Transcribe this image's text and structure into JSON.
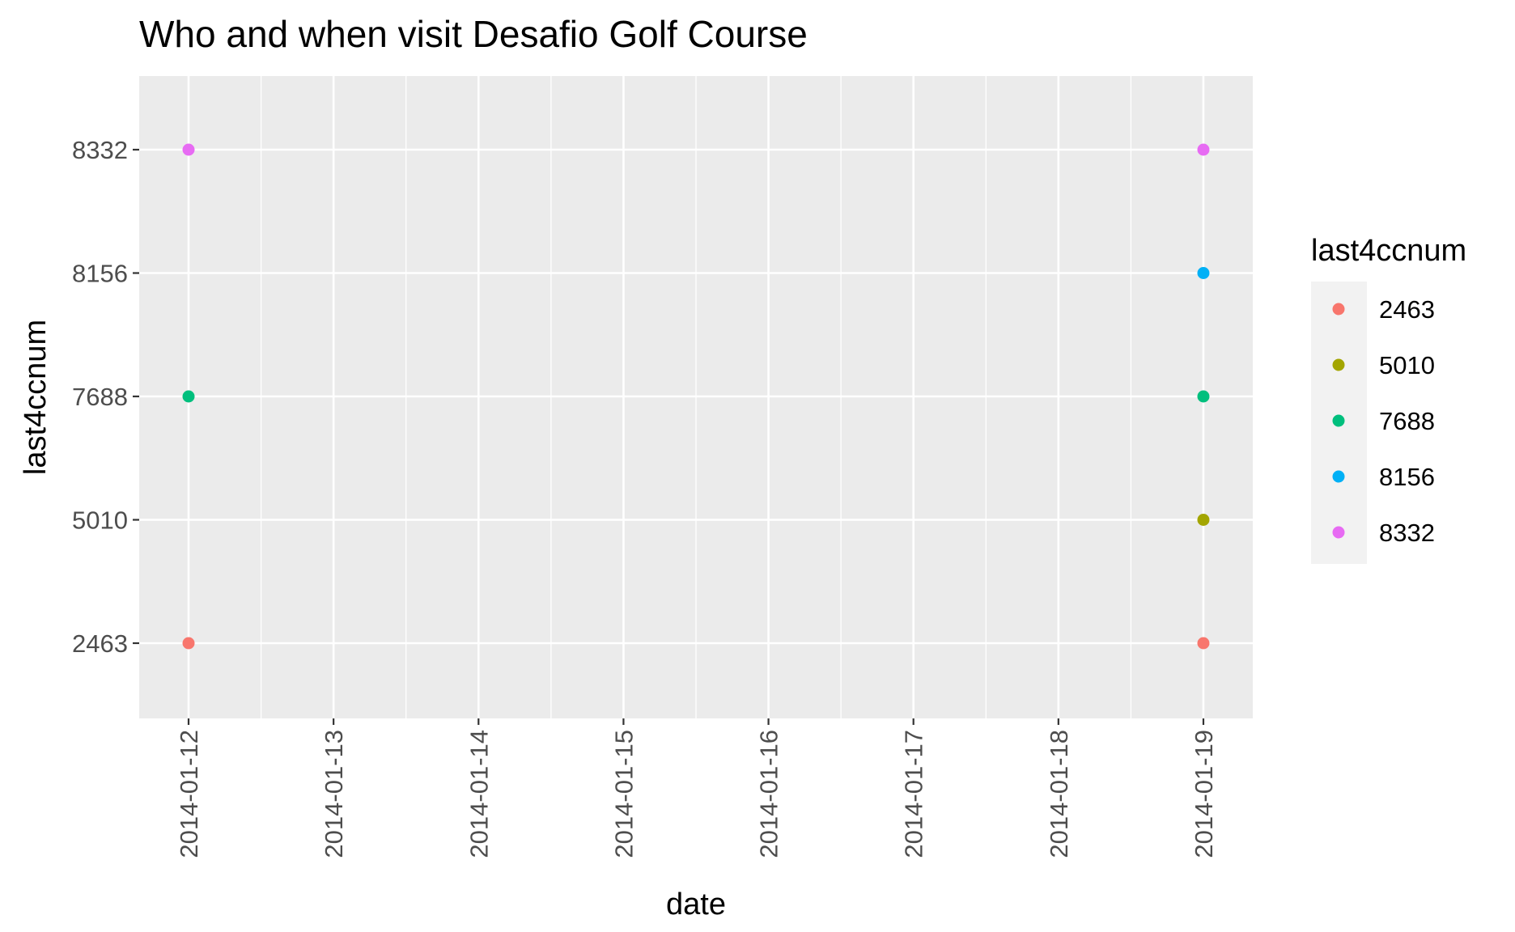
{
  "chart_data": {
    "type": "scatter",
    "title": "Who and when visit Desafio Golf Course",
    "xlabel": "date",
    "ylabel": "last4ccnum",
    "x_ticks": [
      "2014-01-12",
      "2014-01-13",
      "2014-01-14",
      "2014-01-15",
      "2014-01-16",
      "2014-01-17",
      "2014-01-18",
      "2014-01-19"
    ],
    "y_categories": [
      "2463",
      "5010",
      "7688",
      "8156",
      "8332"
    ],
    "grid": true,
    "legend": {
      "title": "last4ccnum",
      "placement": "right",
      "entries": [
        {
          "label": "2463",
          "color": "#F8766D"
        },
        {
          "label": "5010",
          "color": "#A3A500"
        },
        {
          "label": "7688",
          "color": "#00BF7D"
        },
        {
          "label": "8156",
          "color": "#00B0F6"
        },
        {
          "label": "8332",
          "color": "#E76BF3"
        }
      ]
    },
    "points": [
      {
        "x": "2014-01-12",
        "y": "2463"
      },
      {
        "x": "2014-01-12",
        "y": "7688"
      },
      {
        "x": "2014-01-12",
        "y": "8332"
      },
      {
        "x": "2014-01-19",
        "y": "2463"
      },
      {
        "x": "2014-01-19",
        "y": "5010"
      },
      {
        "x": "2014-01-19",
        "y": "7688"
      },
      {
        "x": "2014-01-19",
        "y": "8156"
      },
      {
        "x": "2014-01-19",
        "y": "8332"
      }
    ]
  },
  "colors": {
    "panel_background": "#EBEBEB",
    "grid": "#FFFFFF",
    "legend_key_background": "#F2F2F2",
    "tick_text": "#4D4D4D"
  }
}
